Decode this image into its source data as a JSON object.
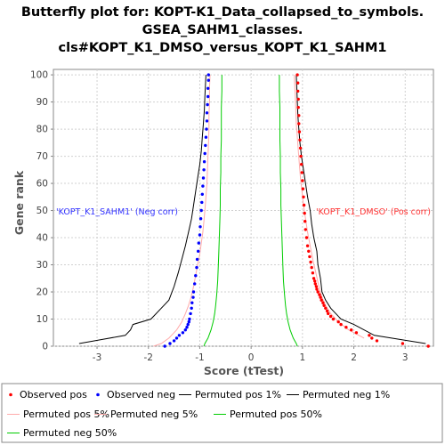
{
  "chart_data": {
    "type": "line",
    "title": [
      "Butterfly plot for: KOPT-K1_Data_collapsed_to_symbols.",
      "GSEA_SAHM1_classes.",
      "cls#KOPT_K1_DMSO_versus_KOPT_K1_SAHM1"
    ],
    "xlabel": "Score (tTest)",
    "ylabel": "Gene rank",
    "xlim": [
      -3.85,
      3.55
    ],
    "ylim": [
      0,
      102
    ],
    "xticks": [
      -3,
      -2,
      -1,
      0,
      1,
      2,
      3
    ],
    "yticks": [
      0,
      10,
      20,
      30,
      40,
      50,
      60,
      70,
      80,
      90,
      100
    ],
    "grid": true,
    "annotations": [
      {
        "text": "'KOPT_K1_SAHM1' (Neg corr)",
        "color": "#3333ff",
        "side": "left"
      },
      {
        "text": "'KOPT_K1_DMSO' (Pos corr)",
        "color": "#ff3333",
        "side": "right"
      }
    ],
    "legend": {
      "position": "bottom",
      "entries": [
        {
          "label": "Observed pos",
          "color": "#ff0000",
          "kind": "dot"
        },
        {
          "label": "Observed neg",
          "color": "#0000ff",
          "kind": "dot"
        },
        {
          "label": "Permuted pos 1%",
          "color": "#000000",
          "kind": "line"
        },
        {
          "label": "Permuted neg 1%",
          "color": "#000000",
          "kind": "line"
        },
        {
          "label": "Permuted pos 5%",
          "color": "#ffaaaa",
          "kind": "line"
        },
        {
          "label": "Permuted neg 5%",
          "color": "#ffaaaa",
          "kind": "line"
        },
        {
          "label": "Permuted pos 50%",
          "color": "#00cc00",
          "kind": "line"
        },
        {
          "label": "Permuted neg 50%",
          "color": "#00cc00",
          "kind": "line"
        }
      ]
    },
    "series": [
      {
        "name": "Observed pos",
        "color": "#ff0000",
        "kind": "dots",
        "points": [
          [
            3.45,
            0
          ],
          [
            2.95,
            1
          ],
          [
            2.45,
            2
          ],
          [
            2.35,
            3
          ],
          [
            2.3,
            4
          ],
          [
            2.05,
            5
          ],
          [
            1.95,
            6
          ],
          [
            1.85,
            7
          ],
          [
            1.75,
            8
          ],
          [
            1.7,
            9
          ],
          [
            1.6,
            10
          ],
          [
            1.55,
            11
          ],
          [
            1.5,
            12
          ],
          [
            1.48,
            13
          ],
          [
            1.45,
            14
          ],
          [
            1.42,
            15
          ],
          [
            1.4,
            16
          ],
          [
            1.37,
            17
          ],
          [
            1.35,
            18
          ],
          [
            1.33,
            19
          ],
          [
            1.3,
            20
          ],
          [
            1.28,
            21
          ],
          [
            1.27,
            22
          ],
          [
            1.25,
            23
          ],
          [
            1.24,
            24
          ],
          [
            1.22,
            25
          ],
          [
            1.2,
            27
          ],
          [
            1.18,
            29
          ],
          [
            1.16,
            31
          ],
          [
            1.14,
            33
          ],
          [
            1.12,
            35
          ],
          [
            1.1,
            37
          ],
          [
            1.08,
            40
          ],
          [
            1.06,
            43
          ],
          [
            1.05,
            46
          ],
          [
            1.04,
            49
          ],
          [
            1.03,
            52
          ],
          [
            1.02,
            55
          ],
          [
            1.01,
            58
          ],
          [
            1.0,
            61
          ],
          [
            0.99,
            64
          ],
          [
            0.98,
            67
          ],
          [
            0.97,
            70
          ],
          [
            0.96,
            73
          ],
          [
            0.95,
            76
          ],
          [
            0.94,
            79
          ],
          [
            0.93,
            82
          ],
          [
            0.93,
            85
          ],
          [
            0.92,
            88
          ],
          [
            0.92,
            91
          ],
          [
            0.91,
            94
          ],
          [
            0.91,
            97
          ],
          [
            0.9,
            100
          ]
        ]
      },
      {
        "name": "Observed neg",
        "color": "#0000ff",
        "kind": "dots",
        "points": [
          [
            -1.68,
            0
          ],
          [
            -1.58,
            1
          ],
          [
            -1.5,
            2
          ],
          [
            -1.45,
            3
          ],
          [
            -1.4,
            4
          ],
          [
            -1.33,
            5
          ],
          [
            -1.28,
            6
          ],
          [
            -1.25,
            7
          ],
          [
            -1.23,
            8
          ],
          [
            -1.21,
            9
          ],
          [
            -1.2,
            10
          ],
          [
            -1.18,
            12
          ],
          [
            -1.16,
            14
          ],
          [
            -1.15,
            16
          ],
          [
            -1.13,
            18
          ],
          [
            -1.12,
            20
          ],
          [
            -1.1,
            23
          ],
          [
            -1.08,
            26
          ],
          [
            -1.06,
            29
          ],
          [
            -1.05,
            32
          ],
          [
            -1.03,
            35
          ],
          [
            -1.02,
            38
          ],
          [
            -1.0,
            41
          ],
          [
            -0.99,
            44
          ],
          [
            -0.98,
            47
          ],
          [
            -0.97,
            50
          ],
          [
            -0.96,
            53
          ],
          [
            -0.95,
            56
          ],
          [
            -0.94,
            59
          ],
          [
            -0.93,
            62
          ],
          [
            -0.92,
            65
          ],
          [
            -0.91,
            68
          ],
          [
            -0.9,
            71
          ],
          [
            -0.89,
            74
          ],
          [
            -0.88,
            77
          ],
          [
            -0.87,
            80
          ],
          [
            -0.86,
            83
          ],
          [
            -0.86,
            86
          ],
          [
            -0.85,
            89
          ],
          [
            -0.84,
            92
          ],
          [
            -0.84,
            95
          ],
          [
            -0.83,
            98
          ],
          [
            -0.83,
            100
          ]
        ]
      },
      {
        "name": "Permuted pos 1%",
        "color": "#000000",
        "kind": "line",
        "points": [
          [
            3.4,
            1
          ],
          [
            2.4,
            4
          ],
          [
            2.0,
            8
          ],
          [
            1.75,
            10
          ],
          [
            1.55,
            14
          ],
          [
            1.45,
            17
          ],
          [
            1.38,
            20
          ],
          [
            1.35,
            25
          ],
          [
            1.3,
            30
          ],
          [
            1.28,
            35
          ],
          [
            1.22,
            40
          ],
          [
            1.18,
            45
          ],
          [
            1.15,
            50
          ],
          [
            1.1,
            55
          ],
          [
            1.06,
            60
          ],
          [
            1.02,
            65
          ],
          [
            0.98,
            70
          ],
          [
            0.95,
            75
          ],
          [
            0.93,
            80
          ],
          [
            0.91,
            85
          ],
          [
            0.9,
            90
          ],
          [
            0.89,
            95
          ],
          [
            0.88,
            100
          ]
        ]
      },
      {
        "name": "Permuted neg 1%",
        "color": "#000000",
        "kind": "line",
        "points": [
          [
            -3.35,
            1
          ],
          [
            -2.45,
            4
          ],
          [
            -2.35,
            6
          ],
          [
            -2.3,
            8
          ],
          [
            -1.95,
            10
          ],
          [
            -1.75,
            14
          ],
          [
            -1.6,
            17
          ],
          [
            -1.5,
            22
          ],
          [
            -1.42,
            27
          ],
          [
            -1.35,
            32
          ],
          [
            -1.28,
            37
          ],
          [
            -1.22,
            42
          ],
          [
            -1.16,
            47
          ],
          [
            -1.12,
            52
          ],
          [
            -1.08,
            57
          ],
          [
            -1.04,
            62
          ],
          [
            -1.0,
            67
          ],
          [
            -0.97,
            72
          ],
          [
            -0.95,
            77
          ],
          [
            -0.93,
            82
          ],
          [
            -0.91,
            87
          ],
          [
            -0.9,
            92
          ],
          [
            -0.89,
            96
          ],
          [
            -0.88,
            100
          ]
        ]
      },
      {
        "name": "Permuted pos 5%",
        "color": "#ffaaaa",
        "kind": "line",
        "points": [
          [
            2.2,
            3
          ],
          [
            1.9,
            6
          ],
          [
            1.7,
            9
          ],
          [
            1.55,
            12
          ],
          [
            1.45,
            15
          ],
          [
            1.38,
            18
          ],
          [
            1.32,
            22
          ],
          [
            1.26,
            27
          ],
          [
            1.2,
            32
          ],
          [
            1.15,
            37
          ],
          [
            1.1,
            42
          ],
          [
            1.06,
            47
          ],
          [
            1.02,
            52
          ],
          [
            0.99,
            57
          ],
          [
            0.96,
            62
          ],
          [
            0.94,
            67
          ],
          [
            0.92,
            72
          ],
          [
            0.9,
            77
          ],
          [
            0.88,
            82
          ],
          [
            0.87,
            87
          ],
          [
            0.86,
            92
          ],
          [
            0.85,
            96
          ],
          [
            0.84,
            100
          ]
        ]
      },
      {
        "name": "Permuted neg 5%",
        "color": "#ffaaaa",
        "kind": "line",
        "points": [
          [
            -1.9,
            0
          ],
          [
            -1.75,
            1
          ],
          [
            -1.6,
            3
          ],
          [
            -1.45,
            6
          ],
          [
            -1.35,
            9
          ],
          [
            -1.28,
            12
          ],
          [
            -1.22,
            15
          ],
          [
            -1.17,
            18
          ],
          [
            -1.12,
            22
          ],
          [
            -1.08,
            26
          ],
          [
            -1.04,
            30
          ],
          [
            -1.0,
            34
          ],
          [
            -0.97,
            38
          ],
          [
            -0.94,
            42
          ],
          [
            -0.92,
            46
          ],
          [
            -0.9,
            50
          ],
          [
            -0.88,
            55
          ],
          [
            -0.86,
            60
          ],
          [
            -0.85,
            65
          ],
          [
            -0.84,
            70
          ],
          [
            -0.83,
            75
          ],
          [
            -0.82,
            80
          ],
          [
            -0.82,
            85
          ],
          [
            -0.81,
            90
          ],
          [
            -0.81,
            95
          ],
          [
            -0.8,
            100
          ]
        ]
      },
      {
        "name": "Permuted pos 50%",
        "color": "#00cc00",
        "kind": "line",
        "points": [
          [
            0.9,
            0
          ],
          [
            0.88,
            1
          ],
          [
            0.82,
            3
          ],
          [
            0.76,
            6
          ],
          [
            0.72,
            9
          ],
          [
            0.69,
            12
          ],
          [
            0.67,
            15
          ],
          [
            0.65,
            19
          ],
          [
            0.63,
            24
          ],
          [
            0.62,
            29
          ],
          [
            0.61,
            34
          ],
          [
            0.6,
            40
          ],
          [
            0.59,
            46
          ],
          [
            0.58,
            52
          ],
          [
            0.58,
            58
          ],
          [
            0.57,
            64
          ],
          [
            0.57,
            70
          ],
          [
            0.56,
            76
          ],
          [
            0.56,
            82
          ],
          [
            0.56,
            88
          ],
          [
            0.55,
            94
          ],
          [
            0.55,
            100
          ]
        ]
      },
      {
        "name": "Permuted neg 50%",
        "color": "#00cc00",
        "kind": "line",
        "points": [
          [
            -0.92,
            0
          ],
          [
            -0.9,
            1
          ],
          [
            -0.84,
            3
          ],
          [
            -0.78,
            6
          ],
          [
            -0.74,
            9
          ],
          [
            -0.71,
            12
          ],
          [
            -0.69,
            15
          ],
          [
            -0.67,
            19
          ],
          [
            -0.65,
            24
          ],
          [
            -0.64,
            29
          ],
          [
            -0.63,
            34
          ],
          [
            -0.62,
            40
          ],
          [
            -0.61,
            46
          ],
          [
            -0.6,
            52
          ],
          [
            -0.6,
            58
          ],
          [
            -0.59,
            64
          ],
          [
            -0.59,
            70
          ],
          [
            -0.58,
            76
          ],
          [
            -0.58,
            82
          ],
          [
            -0.58,
            88
          ],
          [
            -0.57,
            94
          ],
          [
            -0.57,
            100
          ]
        ]
      }
    ]
  }
}
